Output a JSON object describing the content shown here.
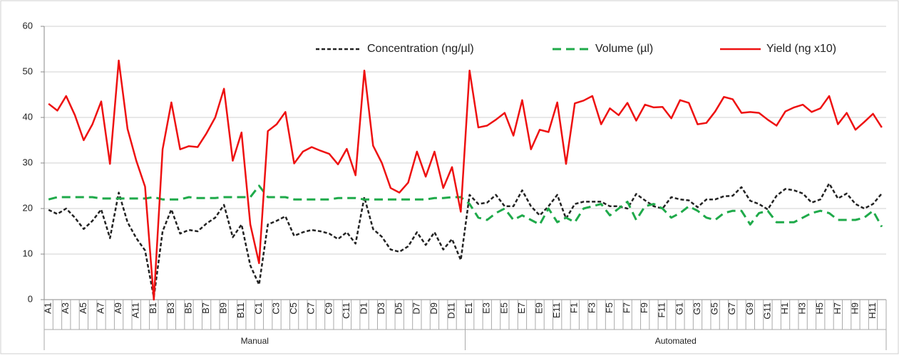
{
  "chart_data": {
    "type": "line",
    "categories": [
      "A1",
      null,
      "A3",
      null,
      "A5",
      null,
      "A7",
      null,
      "A9",
      null,
      "A11",
      null,
      "B1",
      null,
      "B3",
      null,
      "B5",
      null,
      "B7",
      null,
      "B9",
      null,
      "B11",
      null,
      "C1",
      null,
      "C3",
      null,
      "C5",
      null,
      "C7",
      null,
      "C9",
      null,
      "C11",
      null,
      "D1",
      null,
      "D3",
      null,
      "D5",
      null,
      "D7",
      null,
      "D9",
      null,
      "D11",
      null,
      "E1",
      null,
      "E3",
      null,
      "E5",
      null,
      "E7",
      null,
      "E9",
      null,
      "E11",
      null,
      "F1",
      null,
      "F3",
      null,
      "F5",
      null,
      "F7",
      null,
      "F9",
      null,
      "F11",
      null,
      "G1",
      null,
      "G3",
      null,
      "G5",
      null,
      "G7",
      null,
      "G9",
      null,
      "G11",
      null,
      "H1",
      null,
      "H3",
      null,
      "H5",
      null,
      "H7",
      null,
      "H9",
      null,
      "H11",
      null
    ],
    "groups": [
      "Manual",
      "Automated"
    ],
    "series": [
      {
        "name": "Concentration (ng/µl)",
        "color": "#222222",
        "line_style": "dotted-dash",
        "values": [
          19.7,
          18.8,
          20,
          18,
          15.5,
          17.3,
          19.8,
          13.5,
          23.5,
          17,
          13.5,
          10.8,
          0.5,
          15,
          19.8,
          14.5,
          15.3,
          15,
          16.7,
          18,
          20.8,
          13.7,
          16.5,
          7.5,
          3.3,
          16.5,
          17.3,
          18.3,
          14,
          14.8,
          15.3,
          15,
          14.5,
          13.3,
          14.8,
          12.3,
          22.5,
          15.5,
          13.8,
          11,
          10.5,
          11.7,
          14.8,
          12,
          14.8,
          11,
          13.3,
          8.7,
          23,
          21,
          21.3,
          23,
          20.5,
          20.5,
          24,
          20.5,
          18.5,
          20.5,
          23,
          17.8,
          21,
          21.5,
          21.5,
          21.5,
          20.5,
          20.5,
          20,
          23.2,
          21.8,
          20.5,
          20,
          22.5,
          22,
          21.8,
          20.3,
          22,
          22,
          22.7,
          22.8,
          24.7,
          21.7,
          21,
          19.8,
          22.8,
          24.3,
          24,
          23.3,
          21.3,
          22,
          25.5,
          22.2,
          23.3,
          21,
          20,
          21,
          23.3
        ]
      },
      {
        "name": "Volume (µl)",
        "color": "#1faa4a",
        "line_style": "dashed",
        "values": [
          22,
          22.5,
          22.5,
          22.5,
          22.5,
          22.5,
          22.2,
          22.2,
          22.2,
          22.2,
          22.2,
          22.2,
          22.5,
          22,
          22,
          22,
          22.5,
          22.3,
          22.3,
          22.3,
          22.5,
          22.5,
          22.5,
          22.5,
          25,
          22.5,
          22.5,
          22.5,
          22,
          22,
          22,
          22,
          22,
          22.3,
          22.3,
          22.3,
          22,
          22,
          22,
          22,
          22,
          22,
          22,
          22,
          22.3,
          22.3,
          22.5,
          22.5,
          21,
          18,
          17.5,
          19,
          20,
          17.5,
          18.5,
          17.5,
          16.5,
          20,
          17,
          18,
          17,
          20,
          20.5,
          21,
          18.5,
          20,
          21.5,
          17.5,
          20.5,
          21,
          20,
          18,
          19,
          20.5,
          19.5,
          18,
          17.5,
          19,
          19.5,
          19.5,
          16.5,
          19,
          19.5,
          17,
          17,
          17,
          18,
          19,
          19.5,
          19,
          17.5,
          17.5,
          17.5,
          18,
          19.5,
          16
        ]
      },
      {
        "name": "Yield (ng x10)",
        "color": "#ee1111",
        "line_style": "solid",
        "values": [
          43,
          41.5,
          44.7,
          40.5,
          35,
          38.5,
          43.5,
          29.8,
          52.5,
          37.5,
          30.5,
          24.8,
          0,
          33,
          43.3,
          33,
          33.7,
          33.5,
          36.5,
          40,
          46.3,
          30.5,
          36.7,
          16.5,
          8,
          37,
          38.5,
          41.2,
          29.9,
          32.5,
          33.5,
          32.7,
          32,
          29.7,
          33.1,
          27.3,
          50.3,
          33.8,
          30,
          24.5,
          23.5,
          25.7,
          32.5,
          27,
          32.5,
          24.5,
          29.1,
          19.3,
          50.3,
          37.8,
          38.2,
          39.5,
          41,
          36,
          43.8,
          33,
          37.3,
          36.8,
          43.3,
          29.8,
          43.1,
          43.7,
          44.7,
          38.5,
          42,
          40.5,
          43.2,
          39.3,
          42.8,
          42.2,
          42.3,
          39.8,
          43.8,
          43.2,
          38.5,
          38.8,
          41.3,
          44.5,
          44,
          41,
          41.2,
          41,
          39.5,
          38.2,
          41.3,
          42.2,
          42.8,
          41.2,
          42,
          44.7,
          38.5,
          41,
          37.3,
          39,
          40.8,
          37.8
        ]
      }
    ],
    "ylim": [
      0,
      60
    ],
    "yticks": [
      0,
      10,
      20,
      30,
      40,
      50,
      60
    ],
    "grid": true,
    "legend": "top-right"
  }
}
